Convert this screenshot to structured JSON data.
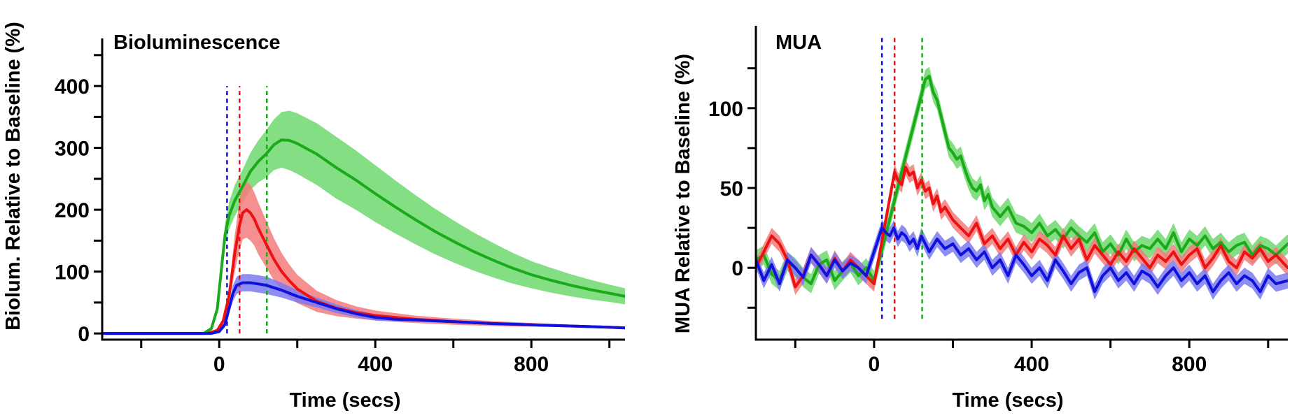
{
  "colors": {
    "green": "#1aaa1a",
    "red": "#ee1111",
    "blue": "#1111dd",
    "green_band": "#6ed86e",
    "red_band": "#f57b7b",
    "blue_band": "#7b7bf0"
  },
  "chart_data": [
    {
      "type": "line",
      "title": "Bioluminescence",
      "xlabel": "Time (secs)",
      "ylabel": "Biolum. Relative to Baseline (%)",
      "xlim": [
        -300,
        1040
      ],
      "ylim": [
        -10,
        460
      ],
      "xticks": [
        -200,
        0,
        200,
        400,
        600,
        800,
        1000
      ],
      "xtick_labels": [
        "",
        "0",
        "",
        "400",
        "",
        "800",
        ""
      ],
      "yticks": [
        0,
        50,
        100,
        150,
        200,
        250,
        300,
        350,
        400,
        450
      ],
      "ytick_labels": [
        "0",
        "",
        "100",
        "",
        "200",
        "",
        "300",
        "",
        "400",
        ""
      ],
      "vlines": [
        {
          "x": 20,
          "color": "blue",
          "range": [
            0,
            400
          ]
        },
        {
          "x": 52,
          "color": "red",
          "range": [
            0,
            400
          ]
        },
        {
          "x": 122,
          "color": "green",
          "range": [
            0,
            400
          ]
        }
      ],
      "series": [
        {
          "color": "green",
          "x": [
            -300,
            -40,
            -20,
            -5,
            5,
            15,
            25,
            40,
            60,
            80,
            100,
            120,
            140,
            160,
            180,
            200,
            250,
            300,
            350,
            400,
            450,
            500,
            550,
            600,
            650,
            700,
            750,
            800,
            850,
            900,
            950,
            1000,
            1040
          ],
          "y": [
            0,
            0,
            8,
            40,
            100,
            160,
            190,
            215,
            238,
            262,
            278,
            290,
            305,
            313,
            312,
            307,
            290,
            268,
            248,
            226,
            205,
            185,
            166,
            149,
            133,
            119,
            106,
            95,
            86,
            78,
            71,
            65,
            60
          ],
          "upper": [
            0,
            1,
            11,
            47,
            112,
            178,
            212,
            240,
            265,
            292,
            312,
            328,
            346,
            358,
            360,
            356,
            340,
            318,
            296,
            272,
            248,
            225,
            203,
            183,
            164,
            147,
            131,
            117,
            106,
            96,
            87,
            79,
            73
          ],
          "lower": [
            0,
            -1,
            5,
            33,
            88,
            142,
            168,
            190,
            211,
            232,
            244,
            252,
            264,
            268,
            264,
            258,
            240,
            218,
            200,
            180,
            162,
            145,
            129,
            115,
            102,
            91,
            81,
            73,
            66,
            60,
            55,
            51,
            47
          ]
        },
        {
          "color": "red",
          "x": [
            -300,
            -30,
            -5,
            10,
            25,
            40,
            52,
            60,
            70,
            80,
            90,
            100,
            120,
            140,
            160,
            180,
            200,
            250,
            300,
            350,
            400,
            500,
            600,
            700,
            800,
            900,
            1000,
            1040
          ],
          "y": [
            0,
            0,
            5,
            20,
            60,
            130,
            175,
            195,
            200,
            195,
            185,
            170,
            145,
            120,
            100,
            85,
            72,
            52,
            41,
            34,
            29,
            23,
            19,
            16,
            14,
            12,
            10,
            9
          ],
          "upper": [
            0,
            1,
            7,
            25,
            72,
            160,
            215,
            238,
            245,
            240,
            228,
            212,
            183,
            154,
            130,
            111,
            95,
            69,
            54,
            44,
            37,
            29,
            24,
            20,
            17,
            14,
            12,
            11
          ],
          "lower": [
            0,
            -1,
            3,
            15,
            48,
            100,
            135,
            152,
            155,
            150,
            142,
            128,
            107,
            86,
            70,
            59,
            49,
            35,
            28,
            24,
            21,
            17,
            14,
            12,
            11,
            10,
            8,
            7
          ]
        },
        {
          "color": "blue",
          "x": [
            -300,
            -20,
            0,
            15,
            25,
            35,
            45,
            60,
            80,
            100,
            120,
            140,
            160,
            180,
            200,
            250,
            300,
            350,
            400,
            450,
            500,
            600,
            700,
            800,
            900,
            1000,
            1040
          ],
          "y": [
            0,
            0,
            3,
            15,
            40,
            65,
            78,
            82,
            82,
            80,
            78,
            74,
            70,
            65,
            60,
            50,
            40,
            32,
            26,
            23,
            22,
            19,
            16,
            14,
            12,
            10,
            9
          ],
          "upper": [
            0,
            1,
            5,
            20,
            48,
            78,
            92,
            96,
            96,
            94,
            92,
            87,
            82,
            76,
            70,
            58,
            47,
            38,
            31,
            27,
            25,
            21,
            18,
            16,
            14,
            11,
            10
          ],
          "lower": [
            0,
            -1,
            1,
            10,
            32,
            52,
            64,
            68,
            68,
            66,
            64,
            61,
            58,
            54,
            50,
            42,
            33,
            26,
            21,
            19,
            19,
            17,
            14,
            12,
            10,
            9,
            8
          ]
        }
      ]
    },
    {
      "type": "line",
      "title": "MUA",
      "xlabel": "Time (secs)",
      "ylabel": "MUA Relative to Baseline (%)",
      "xlim": [
        -300,
        1050
      ],
      "ylim": [
        -45,
        145
      ],
      "xticks": [
        -200,
        0,
        200,
        400,
        600,
        800,
        1000
      ],
      "xtick_labels": [
        "",
        "0",
        "",
        "400",
        "",
        "800",
        ""
      ],
      "yticks": [
        -25,
        0,
        25,
        50,
        75,
        100,
        125
      ],
      "ytick_labels": [
        "",
        "0",
        "",
        "50",
        "",
        "100",
        ""
      ],
      "vlines": [
        {
          "x": 20,
          "color": "blue",
          "range": [
            -32,
            145
          ]
        },
        {
          "x": 52,
          "color": "red",
          "range": [
            -32,
            145
          ]
        },
        {
          "x": 122,
          "color": "green",
          "range": [
            -32,
            145
          ]
        }
      ],
      "series": [
        {
          "color": "green",
          "band": 6,
          "x": [
            -300,
            -280,
            -260,
            -240,
            -220,
            -200,
            -180,
            -160,
            -140,
            -120,
            -100,
            -80,
            -60,
            -40,
            -20,
            0,
            130,
            140,
            150,
            160,
            170,
            180,
            190,
            200,
            210,
            220,
            230,
            240,
            250,
            260,
            270,
            280,
            290,
            300,
            320,
            340,
            360,
            380,
            400,
            420,
            440,
            460,
            480,
            500,
            520,
            540,
            560,
            580,
            600,
            620,
            640,
            660,
            680,
            700,
            720,
            740,
            760,
            780,
            800,
            820,
            840,
            860,
            880,
            900,
            920,
            940,
            960,
            980,
            1000,
            1020,
            1050
          ],
          "y": [
            5,
            8,
            -4,
            -8,
            4,
            0,
            -6,
            -10,
            2,
            5,
            -8,
            -2,
            3,
            -5,
            0,
            -8,
            118,
            120,
            110,
            105,
            95,
            85,
            75,
            72,
            68,
            70,
            62,
            55,
            50,
            48,
            52,
            42,
            46,
            38,
            32,
            38,
            28,
            26,
            22,
            28,
            20,
            24,
            18,
            25,
            20,
            16,
            22,
            10,
            15,
            8,
            18,
            10,
            14,
            12,
            18,
            12,
            22,
            10,
            18,
            14,
            20,
            12,
            16,
            10,
            14,
            16,
            8,
            14,
            12,
            8,
            15
          ]
        },
        {
          "color": "red",
          "band": 5,
          "x": [
            -300,
            -280,
            -260,
            -240,
            -220,
            -200,
            -180,
            -160,
            -140,
            -120,
            -100,
            -80,
            -60,
            -40,
            -20,
            0,
            52,
            60,
            70,
            80,
            90,
            100,
            110,
            120,
            130,
            140,
            150,
            160,
            170,
            180,
            200,
            220,
            240,
            260,
            280,
            300,
            320,
            340,
            360,
            380,
            400,
            420,
            440,
            460,
            480,
            500,
            520,
            540,
            560,
            580,
            600,
            620,
            640,
            660,
            680,
            700,
            720,
            740,
            760,
            780,
            800,
            820,
            840,
            860,
            880,
            900,
            920,
            940,
            960,
            980,
            1000,
            1020,
            1050
          ],
          "y": [
            0,
            10,
            20,
            15,
            5,
            -12,
            -5,
            8,
            2,
            -5,
            6,
            -2,
            5,
            0,
            -5,
            -10,
            60,
            55,
            52,
            63,
            58,
            60,
            50,
            55,
            48,
            50,
            40,
            45,
            35,
            38,
            30,
            25,
            20,
            28,
            15,
            20,
            12,
            18,
            8,
            16,
            10,
            18,
            14,
            8,
            20,
            12,
            18,
            5,
            14,
            8,
            2,
            10,
            4,
            12,
            6,
            0,
            8,
            4,
            10,
            2,
            8,
            12,
            0,
            6,
            14,
            4,
            0,
            10,
            6,
            12,
            4,
            8,
            0
          ]
        },
        {
          "color": "blue",
          "band": 5,
          "x": [
            -300,
            -280,
            -260,
            -240,
            -220,
            -200,
            -180,
            -160,
            -140,
            -120,
            -100,
            -80,
            -60,
            -40,
            -20,
            20,
            30,
            40,
            50,
            60,
            70,
            80,
            90,
            100,
            110,
            120,
            130,
            140,
            160,
            180,
            200,
            220,
            240,
            260,
            280,
            300,
            320,
            340,
            360,
            380,
            400,
            420,
            440,
            460,
            480,
            500,
            520,
            540,
            560,
            580,
            600,
            620,
            640,
            660,
            680,
            700,
            720,
            740,
            760,
            780,
            800,
            820,
            840,
            860,
            880,
            900,
            920,
            940,
            960,
            980,
            1000,
            1020,
            1050
          ],
          "y": [
            5,
            -8,
            2,
            -10,
            5,
            0,
            -6,
            8,
            2,
            -5,
            5,
            -2,
            3,
            0,
            -5,
            25,
            22,
            20,
            25,
            18,
            22,
            20,
            15,
            18,
            12,
            20,
            15,
            10,
            18,
            12,
            15,
            8,
            12,
            5,
            10,
            0,
            5,
            -5,
            8,
            2,
            -5,
            0,
            -8,
            5,
            -2,
            -10,
            -3,
            0,
            -15,
            -5,
            0,
            -8,
            -3,
            -10,
            -2,
            -5,
            -12,
            -5,
            0,
            -8,
            -3,
            -10,
            -5,
            -15,
            -8,
            -3,
            -10,
            -5,
            -8,
            -15,
            -5,
            -10,
            -8
          ]
        }
      ]
    }
  ]
}
